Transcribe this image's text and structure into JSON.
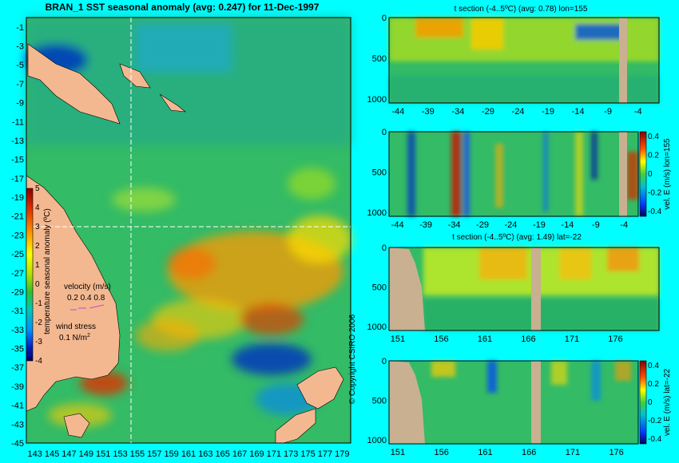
{
  "chart_data": [
    {
      "id": "map",
      "type": "heatmap",
      "title": "BRAN_1 SST seasonal anomaly (avg: 0.247) for 11-Dec-1997",
      "x_ticks": [
        "143",
        "145",
        "147",
        "149",
        "151",
        "153",
        "155",
        "157",
        "159",
        "161",
        "163",
        "165",
        "167",
        "169",
        "171",
        "173",
        "175",
        "177",
        "179"
      ],
      "y_ticks": [
        "-1",
        "-3",
        "-5",
        "-7",
        "-9",
        "-11",
        "-13",
        "-15",
        "-17",
        "-19",
        "-21",
        "-23",
        "-25",
        "-27",
        "-29",
        "-31",
        "-33",
        "-35",
        "-37",
        "-39",
        "-41",
        "-43",
        "-45"
      ],
      "colorbar": {
        "label": "temperature seasonal anomaly (ºC)",
        "ticks": [
          "5",
          "4",
          "3",
          "2",
          "1",
          "0",
          "-1",
          "-2",
          "-3",
          "-4"
        ],
        "range": [
          -4,
          5
        ]
      },
      "crosshair": {
        "lon": 155,
        "lat": -22
      },
      "legend": {
        "velocity_label": "velocity (m/s)",
        "velocity_values": "0.2 0.4 0.8",
        "wind_label": "wind stress",
        "wind_value": "0.1 N/m",
        "wind_sup": "2"
      }
    },
    {
      "id": "tsec1",
      "type": "heatmap",
      "title": "t section (-4..5ºC) (avg: 0.78) lon=155",
      "x_ticks": [
        "-44",
        "-39",
        "-34",
        "-29",
        "-24",
        "-19",
        "-14",
        "-9",
        "-4"
      ],
      "y_ticks": [
        "0",
        "500",
        "1000"
      ]
    },
    {
      "id": "vsec1",
      "type": "heatmap",
      "title": "",
      "x_ticks": [
        "-44",
        "-39",
        "-34",
        "-29",
        "-24",
        "-19",
        "-14",
        "-9",
        "-4"
      ],
      "y_ticks": [
        "0",
        "500",
        "1000"
      ],
      "colorbar": {
        "label": "vel. E (m/s) lon=155",
        "ticks": [
          "0.4",
          "0.2",
          "0",
          "-0.2",
          "-0.4"
        ],
        "range": [
          -0.4,
          0.4
        ]
      }
    },
    {
      "id": "tsec2",
      "type": "heatmap",
      "title": "t section (-4..5ºC) (avg: 1.49) lat=-22",
      "x_ticks": [
        "151",
        "156",
        "161",
        "166",
        "171",
        "176"
      ],
      "y_ticks": [
        "0",
        "500",
        "1000"
      ]
    },
    {
      "id": "vsec2",
      "type": "heatmap",
      "title": "",
      "x_ticks": [
        "151",
        "156",
        "161",
        "166",
        "171",
        "176"
      ],
      "y_ticks": [
        "0",
        "500",
        "1000"
      ],
      "colorbar": {
        "label": "vel. E (m/s) lat=-22",
        "ticks": [
          "0.4",
          "0.2",
          "0",
          "-0.2",
          "-0.4"
        ],
        "range": [
          -0.4,
          0.4
        ]
      }
    }
  ],
  "copyright": "© Copyright CSIRO 2006"
}
